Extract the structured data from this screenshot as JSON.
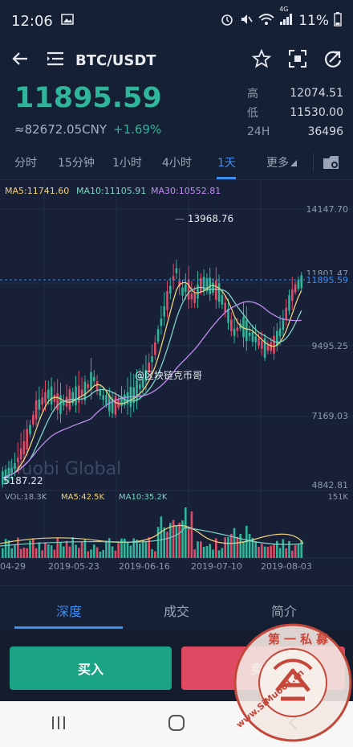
{
  "status_bar": {
    "time": "12:06",
    "battery": "11%",
    "network": "4G"
  },
  "header": {
    "pair": "BTC/USDT"
  },
  "price": {
    "last": "11895.59",
    "cny": "≈82672.05CNY",
    "change": "+1.69%",
    "high_label": "高",
    "high": "12074.51",
    "low_label": "低",
    "low": "11530.00",
    "vol_label": "24H",
    "vol": "36496"
  },
  "intervals": {
    "items": [
      "分时",
      "15分钟",
      "1小时",
      "4小时",
      "1天",
      "更多"
    ],
    "active": "1天"
  },
  "chart": {
    "ma5": "MA5:11741.60",
    "ma10": "MA10:11105.91",
    "ma30": "MA30:10552.81",
    "y_ticks": [
      "14147.70",
      "11801.47",
      "9495.25",
      "7169.03",
      "4842.81"
    ],
    "current_price_tag": "11895.59",
    "max_label": "13968.76",
    "min_label": "5187.22",
    "watermark": "Huobi Global",
    "credit": "@区块链克币哥",
    "vol": "VOL:18.3K",
    "vol_ma5": "MA5:42.5K",
    "vol_ma10": "MA10:35.2K",
    "vol_max": "151K",
    "x_ticks": [
      "04-29",
      "2019-05-23",
      "2019-06-16",
      "2019-07-10",
      "2019-08-03"
    ],
    "colors": {
      "up": "#2fb59a",
      "down": "#e04b68",
      "ma5": "#f0d27c",
      "ma10": "#7fd3c2",
      "ma30": "#c18cf0"
    }
  },
  "chart_data": {
    "type": "candlestick",
    "x_range": [
      "2019-04-29",
      "2019-08-03"
    ],
    "ylim": [
      4842.81,
      14147.7
    ],
    "high": 13968.76,
    "low": 5187.22,
    "last": 11895.59
  },
  "bottom_tabs": {
    "items": [
      "深度",
      "成交",
      "简介"
    ],
    "active": "深度"
  },
  "trade": {
    "buy": "买入",
    "sell": "卖出"
  },
  "stamp": {
    "text": "第一私募",
    "url": "www.SiMu001.cn"
  }
}
